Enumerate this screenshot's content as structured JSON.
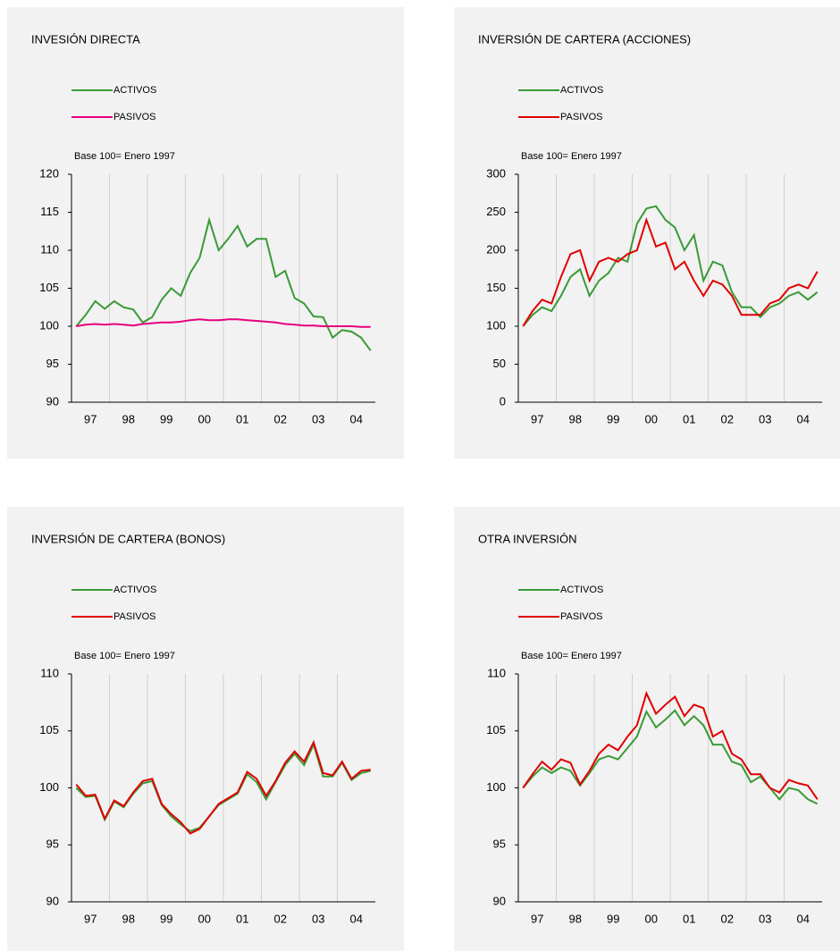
{
  "chart_data": [
    {
      "type": "line",
      "title": "INVESIÓN DIRECTA",
      "note": "Base 100= Enero 1997",
      "categories": [
        "97",
        null,
        null,
        null,
        "98",
        null,
        null,
        null,
        "99",
        null,
        null,
        null,
        "00",
        null,
        null,
        null,
        "01",
        null,
        null,
        null,
        "02",
        null,
        null,
        null,
        "03",
        null,
        null,
        null,
        "04",
        null,
        null,
        null
      ],
      "ylim": [
        90,
        120
      ],
      "yticks": [
        90,
        95,
        100,
        105,
        110,
        115,
        120
      ],
      "series": [
        {
          "name": "ACTIVOS",
          "color": "#3a9a36",
          "values": [
            100,
            101.5,
            103.3,
            102.3,
            103.3,
            102.5,
            102.2,
            100.5,
            101.2,
            103.5,
            105,
            104,
            107,
            109,
            114,
            110,
            111.5,
            113.2,
            110.5,
            111.5,
            111.5,
            106.5,
            107.3,
            103.7,
            103,
            101.3,
            101.2,
            98.5,
            99.5,
            99.3,
            98.5,
            96.8
          ]
        },
        {
          "name": "PASIVOS",
          "color": "#e6007e",
          "values": [
            100,
            100.2,
            100.3,
            100.2,
            100.3,
            100.2,
            100.1,
            100.3,
            100.4,
            100.5,
            100.5,
            100.6,
            100.8,
            100.9,
            100.8,
            100.8,
            100.9,
            100.9,
            100.8,
            100.7,
            100.6,
            100.5,
            100.3,
            100.2,
            100.1,
            100.1,
            100,
            100,
            100,
            100,
            99.9,
            99.9
          ]
        }
      ]
    },
    {
      "type": "line",
      "title": "INVERSIÓN DE CARTERA (ACCIONES)",
      "note": "Base 100= Enero 1997",
      "categories": [
        "97",
        null,
        null,
        null,
        "98",
        null,
        null,
        null,
        "99",
        null,
        null,
        null,
        "00",
        null,
        null,
        null,
        "01",
        null,
        null,
        null,
        "02",
        null,
        null,
        null,
        "03",
        null,
        null,
        null,
        "04",
        null,
        null,
        null
      ],
      "ylim": [
        0,
        300
      ],
      "yticks": [
        0,
        50,
        100,
        150,
        200,
        250,
        300
      ],
      "series": [
        {
          "name": "ACTIVOS",
          "color": "#3a9a36",
          "values": [
            100,
            115,
            125,
            120,
            140,
            165,
            175,
            140,
            160,
            170,
            190,
            185,
            235,
            255,
            258,
            240,
            230,
            200,
            220,
            160,
            185,
            180,
            145,
            125,
            125,
            112,
            125,
            130,
            140,
            145,
            135,
            145
          ]
        },
        {
          "name": "PASIVOS",
          "color": "#e00000",
          "values": [
            100,
            120,
            135,
            130,
            165,
            195,
            200,
            160,
            185,
            190,
            185,
            195,
            200,
            240,
            205,
            210,
            175,
            185,
            160,
            140,
            160,
            155,
            140,
            115,
            115,
            115,
            130,
            135,
            150,
            155,
            150,
            172
          ]
        }
      ]
    },
    {
      "type": "line",
      "title": "INVERSIÓN DE CARTERA (BONOS)",
      "note": "Base 100= Enero 1997",
      "categories": [
        "97",
        null,
        null,
        null,
        "98",
        null,
        null,
        null,
        "99",
        null,
        null,
        null,
        "00",
        null,
        null,
        null,
        "01",
        null,
        null,
        null,
        "02",
        null,
        null,
        null,
        "03",
        null,
        null,
        null,
        "04",
        null,
        null,
        null
      ],
      "ylim": [
        90,
        110
      ],
      "yticks": [
        90,
        95,
        100,
        105,
        110
      ],
      "series": [
        {
          "name": "ACTIVOS",
          "color": "#3a9a36",
          "values": [
            100,
            99.2,
            99.3,
            97.2,
            98.8,
            98.3,
            99.5,
            100.4,
            100.6,
            98.5,
            97.5,
            96.8,
            96.2,
            96.5,
            97.5,
            98.5,
            99,
            99.5,
            101.2,
            100.5,
            99,
            100.5,
            102,
            103,
            102,
            103.8,
            101,
            101,
            102.2,
            100.7,
            101.3,
            101.5
          ]
        },
        {
          "name": "PASIVOS",
          "color": "#e00000",
          "values": [
            100.3,
            99.3,
            99.4,
            97.3,
            98.9,
            98.4,
            99.6,
            100.6,
            100.8,
            98.6,
            97.7,
            97,
            96,
            96.4,
            97.5,
            98.6,
            99.1,
            99.6,
            101.4,
            100.8,
            99.3,
            100.6,
            102.2,
            103.2,
            102.3,
            104,
            101.3,
            101.1,
            102.3,
            100.8,
            101.5,
            101.6
          ]
        }
      ]
    },
    {
      "type": "line",
      "title": "OTRA INVERSIÓN",
      "note": "Base 100= Enero 1997",
      "categories": [
        "97",
        null,
        null,
        null,
        "98",
        null,
        null,
        null,
        "99",
        null,
        null,
        null,
        "00",
        null,
        null,
        null,
        "01",
        null,
        null,
        null,
        "02",
        null,
        null,
        null,
        "03",
        null,
        null,
        null,
        "04",
        null,
        null,
        null
      ],
      "ylim": [
        90,
        110
      ],
      "yticks": [
        90,
        95,
        100,
        105,
        110
      ],
      "series": [
        {
          "name": "ACTIVOS",
          "color": "#3a9a36",
          "values": [
            100,
            101,
            101.8,
            101.3,
            101.8,
            101.5,
            100.2,
            101.3,
            102.5,
            102.8,
            102.5,
            103.5,
            104.5,
            106.7,
            105.3,
            106,
            106.8,
            105.5,
            106.3,
            105.5,
            103.8,
            103.8,
            102.3,
            102,
            100.5,
            101,
            100,
            99,
            100,
            99.8,
            99,
            98.6
          ]
        },
        {
          "name": "PASIVOS",
          "color": "#e00000",
          "values": [
            100,
            101.2,
            102.3,
            101.6,
            102.5,
            102.2,
            100.3,
            101.5,
            103,
            103.8,
            103.3,
            104.5,
            105.5,
            108.3,
            106.5,
            107.3,
            108,
            106.3,
            107.3,
            107,
            104.5,
            105,
            103,
            102.5,
            101.2,
            101.2,
            100,
            99.6,
            100.7,
            100.4,
            100.2,
            99
          ]
        }
      ]
    }
  ]
}
